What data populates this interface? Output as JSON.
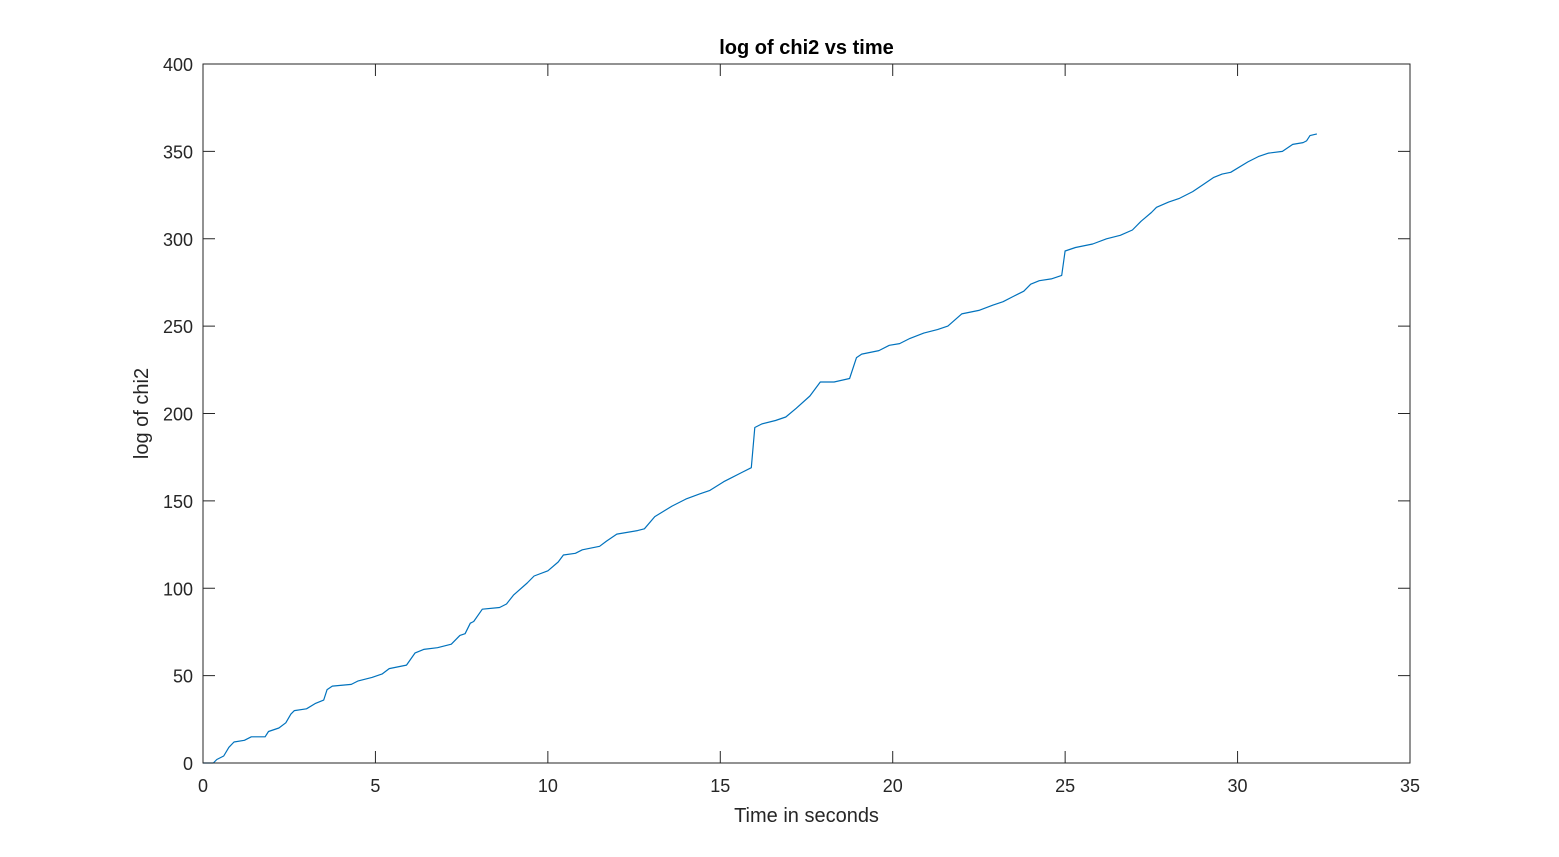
{
  "chart_data": {
    "type": "line",
    "title": "log of chi2 vs time",
    "xlabel": "Time in seconds",
    "ylabel": "log of chi2",
    "xlim": [
      0,
      35
    ],
    "ylim": [
      0,
      400
    ],
    "xticks": [
      0,
      5,
      10,
      15,
      20,
      25,
      30,
      35
    ],
    "yticks": [
      0,
      50,
      100,
      150,
      200,
      250,
      300,
      350,
      400
    ],
    "xtick_labels": [
      "0",
      "5",
      "10",
      "15",
      "20",
      "25",
      "30",
      "35"
    ],
    "ytick_labels": [
      "0",
      "50",
      "100",
      "150",
      "200",
      "250",
      "300",
      "350",
      "400"
    ],
    "grid": false,
    "box": true,
    "series": [
      {
        "color": "#0072BD",
        "x": [
          0,
          0.3,
          0.4,
          0.6,
          0.75,
          0.9,
          1.2,
          1.4,
          1.8,
          1.9,
          2.2,
          2.4,
          2.55,
          2.65,
          3.0,
          3.25,
          3.5,
          3.6,
          3.75,
          4.3,
          4.5,
          4.9,
          5.2,
          5.4,
          5.9,
          6.15,
          6.4,
          6.8,
          7.2,
          7.45,
          7.6,
          7.75,
          7.85,
          8.1,
          8.6,
          8.8,
          9.0,
          9.4,
          9.6,
          10.0,
          10.3,
          10.45,
          10.8,
          11.0,
          11.5,
          11.7,
          12.0,
          12.6,
          12.8,
          13.1,
          13.35,
          13.6,
          14.0,
          14.4,
          14.7,
          15.1,
          15.3,
          15.6,
          15.9,
          16.0,
          16.2,
          16.6,
          16.9,
          17.2,
          17.6,
          17.9,
          18.3,
          18.75,
          18.95,
          19.1,
          19.6,
          19.9,
          20.2,
          20.5,
          20.9,
          21.3,
          21.6,
          22.0,
          22.5,
          22.9,
          23.2,
          23.5,
          23.8,
          24.0,
          24.25,
          24.6,
          24.9,
          25.0,
          25.3,
          25.8,
          26.2,
          26.6,
          26.95,
          27.2,
          27.5,
          27.65,
          28.0,
          28.3,
          28.7,
          29.0,
          29.3,
          29.55,
          29.8,
          30.3,
          30.6,
          30.9,
          31.3,
          31.6,
          31.9,
          32.0,
          32.1,
          32.3
        ],
        "y": [
          0,
          0,
          2,
          4,
          9,
          12,
          13,
          15,
          15,
          18,
          20,
          23,
          28,
          30,
          31,
          34,
          36,
          42,
          44,
          45,
          47,
          49,
          51,
          54,
          56,
          63,
          65,
          66,
          68,
          73,
          74,
          80,
          81,
          88,
          89,
          91,
          96,
          103,
          107,
          110,
          115,
          119,
          120,
          122,
          124,
          127,
          131,
          133,
          134,
          141,
          144,
          147,
          151,
          154,
          156,
          161,
          163,
          166,
          169,
          192,
          194,
          196,
          198,
          203,
          210,
          218,
          218,
          220,
          232,
          234,
          236,
          239,
          240,
          243,
          246,
          248,
          250,
          257,
          259,
          262,
          264,
          267,
          270,
          274,
          276,
          277,
          279,
          293,
          295,
          297,
          300,
          302,
          305,
          310,
          315,
          318,
          321,
          323,
          327,
          331,
          335,
          337,
          338,
          344,
          347,
          349,
          350,
          354,
          355,
          356,
          359,
          360
        ]
      }
    ]
  }
}
